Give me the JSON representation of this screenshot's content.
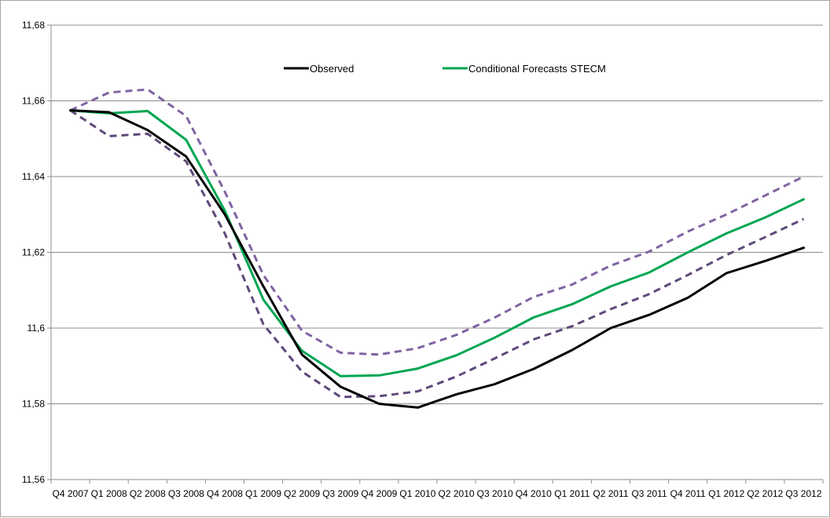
{
  "chart_data": {
    "type": "line",
    "title": "",
    "xlabel": "",
    "ylabel": "",
    "categories": [
      "Q4 2007",
      "Q1 2008",
      "Q2 2008",
      "Q3 2008",
      "Q4 2008",
      "Q1 2009",
      "Q2 2009",
      "Q3 2009",
      "Q4 2009",
      "Q1 2010",
      "Q2 2010",
      "Q3 2010",
      "Q4 2010",
      "Q1 2011",
      "Q2 2011",
      "Q3 2011",
      "Q4 2011",
      "Q1 2012",
      "Q2 2012",
      "Q3 2012"
    ],
    "ylim": [
      11.56,
      11.68
    ],
    "yticks": [
      "11,56",
      "11,58",
      "11,6",
      "11,62",
      "11,64",
      "11,66",
      "11,68"
    ],
    "ytick_values": [
      11.56,
      11.58,
      11.6,
      11.62,
      11.64,
      11.66,
      11.68
    ],
    "grid": "horizontal",
    "legend_position": "top-center",
    "series": [
      {
        "name": "Observed",
        "color": "#000000",
        "style": "solid",
        "legend": true,
        "values": [
          11.6575,
          11.657,
          11.6523,
          11.6453,
          11.63,
          11.611,
          11.593,
          11.5845,
          11.58,
          11.579,
          11.5825,
          11.5852,
          11.5892,
          11.5942,
          11.6,
          11.6035,
          11.608,
          11.6145,
          11.6177,
          11.6212
        ]
      },
      {
        "name": "Conditional Forecasts STECM",
        "color": "#00a651",
        "style": "solid",
        "legend": true,
        "values": [
          11.6575,
          11.6567,
          11.6573,
          11.6497,
          11.631,
          11.6075,
          11.594,
          11.5873,
          11.5875,
          11.5893,
          11.5928,
          11.5975,
          11.6028,
          11.6063,
          11.611,
          11.6147,
          11.62,
          11.625,
          11.6292,
          11.634
        ]
      },
      {
        "name": "Upper band",
        "color": "#8064a2",
        "style": "dashed",
        "legend": false,
        "values": [
          11.6575,
          11.6622,
          11.663,
          11.656,
          11.636,
          11.614,
          11.5993,
          11.5935,
          11.593,
          11.5947,
          11.5982,
          11.6028,
          11.6082,
          11.6115,
          11.6165,
          11.6202,
          11.6255,
          11.63,
          11.635,
          11.64
        ]
      },
      {
        "name": "Lower band",
        "color": "#5f497a",
        "style": "dashed",
        "legend": false,
        "values": [
          11.6575,
          11.6507,
          11.6513,
          11.644,
          11.625,
          11.601,
          11.5885,
          11.5818,
          11.582,
          11.5833,
          11.5872,
          11.592,
          11.597,
          11.6005,
          11.605,
          11.609,
          11.614,
          11.6193,
          11.624,
          11.6288
        ]
      }
    ]
  }
}
